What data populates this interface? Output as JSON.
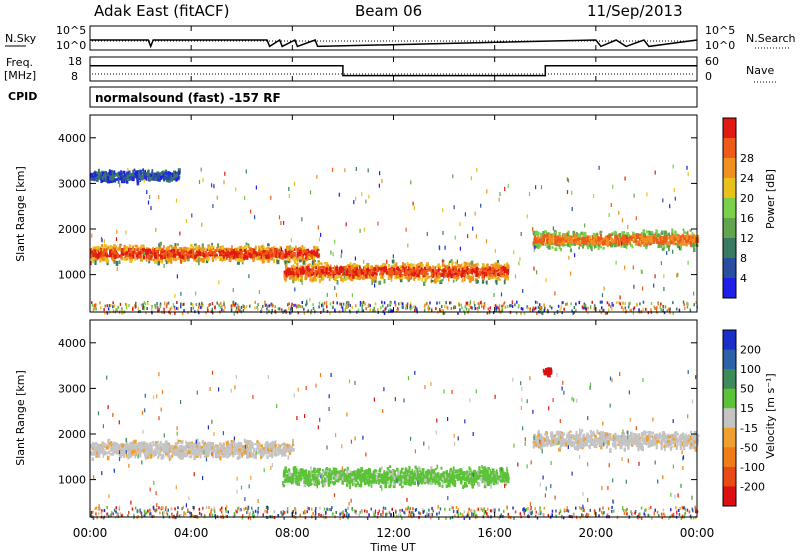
{
  "header": {
    "station": "Adak East (fitACF)",
    "beam": "Beam 06",
    "date": "11/Sep/2013"
  },
  "strips": {
    "nsky_label": "N.Sky",
    "nsearch_label": "N.Search",
    "nsky_ticks": [
      "10^5",
      "10^0"
    ],
    "nsearch_ticks": [
      "10^5",
      "10^0"
    ],
    "freq_label_line1": "Freq.",
    "freq_label_line2": "[MHz]",
    "freq_ticks": [
      "18",
      "8"
    ],
    "nave_label": "Nave",
    "nave_ticks": [
      "60",
      "0"
    ],
    "cpid_label": "CPID",
    "cpid_text": "normalsound (fast) -157 RF"
  },
  "panels": {
    "time_ticks": [
      "00:00",
      "04:00",
      "08:00",
      "12:00",
      "16:00",
      "20:00",
      "00:00"
    ],
    "xlabel": "Time UT",
    "ylabel": "Slant Range [km]",
    "range_ticks": [
      "1000",
      "2000",
      "3000",
      "4000"
    ]
  },
  "colorbars": {
    "power": {
      "label": "Power [dB]",
      "ticks": [
        "4",
        "8",
        "12",
        "16",
        "20",
        "24",
        "28"
      ],
      "colors": [
        "#1f1fe6",
        "#2a4fa0",
        "#3a7a62",
        "#62a54e",
        "#7ad04a",
        "#e8c21a",
        "#f09020",
        "#ee5a18",
        "#e01a10"
      ]
    },
    "velocity": {
      "label": "Velocity [m s⁻¹]",
      "ticks": [
        "200",
        "100",
        "50",
        "15",
        "-15",
        "-50",
        "-100",
        "-200"
      ],
      "colors": [
        "#1a2ec8",
        "#2e62a8",
        "#3e8a58",
        "#5cc238",
        "#c4c4c4",
        "#f0a030",
        "#ef7c18",
        "#e84a14",
        "#dc1010"
      ]
    }
  },
  "chart_data": [
    {
      "type": "line",
      "name": "N.Sky noise",
      "x_hours": [
        0,
        2.3,
        2.4,
        2.5,
        7.0,
        7.1,
        7.5,
        7.6,
        8.1,
        8.2,
        8.9,
        9.0,
        20.0,
        20.2,
        20.8,
        21.2,
        21.9,
        22.1,
        24
      ],
      "y": [
        0.5,
        0.5,
        0.1,
        0.5,
        0.5,
        0.1,
        0.5,
        0.1,
        0.5,
        0.1,
        0.5,
        0.1,
        0.5,
        0.1,
        0.5,
        0.1,
        0.5,
        0.1,
        0.5
      ],
      "ylim": [
        0,
        1
      ]
    },
    {
      "type": "line",
      "name": "Frequency",
      "x_hours": [
        0,
        10.0,
        10.0,
        18.0,
        18.0,
        24
      ],
      "y_mhz": [
        14.5,
        14.5,
        10.0,
        10.0,
        14.5,
        14.5
      ],
      "ylim": [
        8,
        18
      ]
    },
    {
      "type": "heatmap",
      "name": "Power",
      "xlim_hours": [
        0,
        24
      ],
      "ylim_km": [
        180,
        4500
      ],
      "features": [
        {
          "from_h": 0,
          "to_h": 9,
          "range_km": 1500,
          "width_km": 500,
          "level": "high"
        },
        {
          "from_h": 7.6,
          "to_h": 16.5,
          "range_km": 1100,
          "width_km": 550,
          "level": "high"
        },
        {
          "from_h": 17.5,
          "to_h": 24,
          "range_km": 1800,
          "width_km": 500,
          "level": "mid"
        },
        {
          "from_h": 0,
          "to_h": 3.5,
          "range_km": 3200,
          "width_km": 300,
          "level": "low"
        }
      ]
    },
    {
      "type": "heatmap",
      "name": "Velocity",
      "xlim_hours": [
        0,
        24
      ],
      "ylim_km": [
        180,
        4500
      ],
      "features": [
        {
          "from_h": 0,
          "to_h": 8,
          "range_km": 1700,
          "width_km": 500,
          "class": "near-zero"
        },
        {
          "from_h": 7.6,
          "to_h": 16.5,
          "range_km": 1100,
          "width_km": 550,
          "class": "positive-50"
        },
        {
          "from_h": 17.5,
          "to_h": 24,
          "range_km": 1900,
          "width_km": 500,
          "class": "near-zero"
        },
        {
          "from_h": 17.9,
          "to_h": 18.2,
          "range_km": 3400,
          "width_km": 200,
          "class": "negative-200"
        }
      ]
    }
  ]
}
